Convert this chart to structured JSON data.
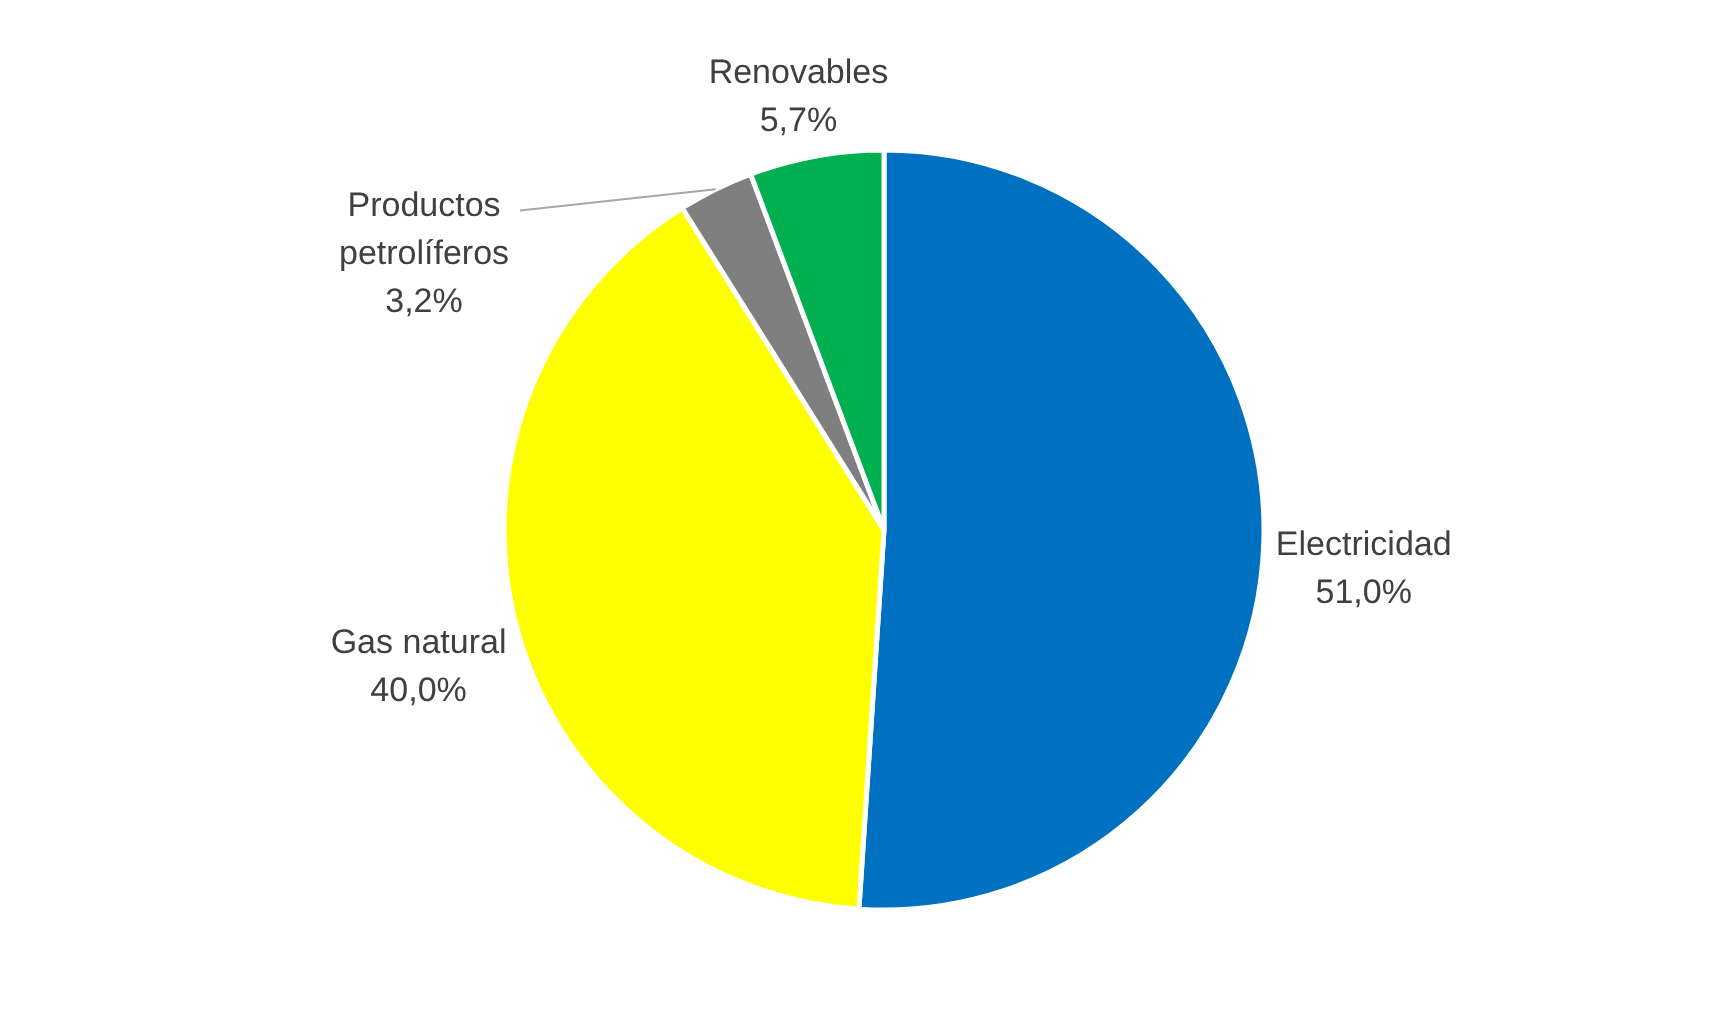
{
  "chart_data": {
    "type": "pie",
    "categories": [
      "Electricidad",
      "Gas natural",
      "Productos petrolíferos",
      "Renovables"
    ],
    "values": [
      51.0,
      40.0,
      3.2,
      5.7
    ],
    "value_labels": [
      "51,0%",
      "40,0%",
      "3,2%",
      "5,7%"
    ],
    "colors": [
      "#0070c0",
      "#ffff00",
      "#7f7f7f",
      "#00b050"
    ]
  }
}
